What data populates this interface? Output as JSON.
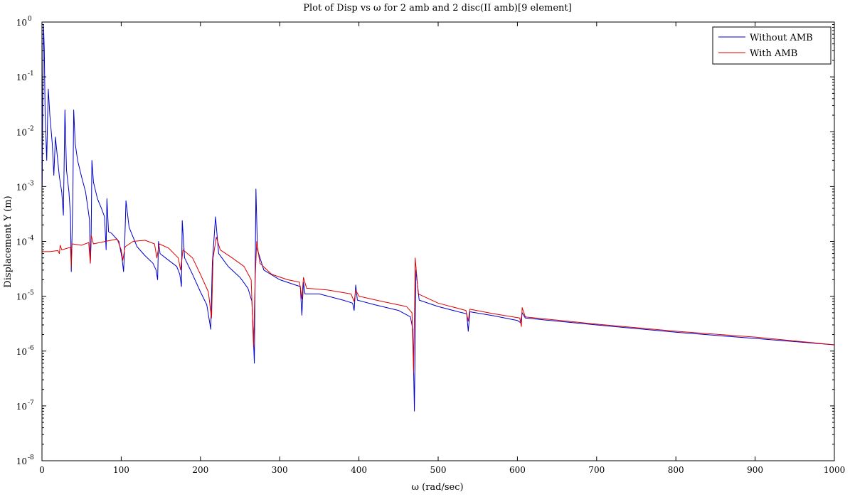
{
  "chart_data": {
    "type": "line",
    "title": "Plot of Disp vs ω for 2 amb and 2 disc(II amb)[9 element]",
    "xlabel": "ω (rad/sec)",
    "ylabel": "Displacement Y (m)",
    "xlim": [
      0,
      1000
    ],
    "ylim": [
      1e-08,
      1
    ],
    "yscale": "log",
    "grid": false,
    "legend_position": "top-right",
    "x_ticks": [
      0,
      100,
      200,
      300,
      400,
      500,
      600,
      700,
      800,
      900,
      1000
    ],
    "x_tick_labels": [
      "0",
      "100",
      "200",
      "300",
      "400",
      "500",
      "600",
      "700",
      "800",
      "900",
      "1000"
    ],
    "y_tick_exponents": [
      0,
      -1,
      -2,
      -3,
      -4,
      -5,
      -6,
      -7,
      -8
    ],
    "y_tick_base": "10",
    "series": [
      {
        "name": "Without AMB",
        "color": "#0000cc",
        "points": [
          [
            0.3,
            0.001
          ],
          [
            1,
            0.05
          ],
          [
            2,
            0.9
          ],
          [
            3,
            0.3
          ],
          [
            4,
            0.02
          ],
          [
            6,
            0.003
          ],
          [
            7,
            0.015
          ],
          [
            8,
            0.06
          ],
          [
            10,
            0.02
          ],
          [
            13,
            0.006
          ],
          [
            15,
            0.0016
          ],
          [
            17,
            0.008
          ],
          [
            19,
            0.004
          ],
          [
            22,
            0.0015
          ],
          [
            25,
            0.0008
          ],
          [
            27,
            0.0003
          ],
          [
            29,
            0.025
          ],
          [
            31,
            0.002
          ],
          [
            34,
            0.0008
          ],
          [
            36,
            0.0003
          ],
          [
            37,
            2.8e-05
          ],
          [
            39,
            0.0006
          ],
          [
            40,
            0.025
          ],
          [
            42,
            0.006
          ],
          [
            45,
            0.003
          ],
          [
            50,
            0.0015
          ],
          [
            55,
            0.0008
          ],
          [
            58,
            0.0004
          ],
          [
            60,
            0.00025
          ],
          [
            61,
            4e-05
          ],
          [
            62,
            0.0001
          ],
          [
            63,
            0.003
          ],
          [
            65,
            0.0012
          ],
          [
            70,
            0.0006
          ],
          [
            75,
            0.0004
          ],
          [
            79,
            0.00028
          ],
          [
            81,
            7e-05
          ],
          [
            82,
            0.0006
          ],
          [
            84,
            0.00015
          ],
          [
            88,
            0.00014
          ],
          [
            92,
            0.00012
          ],
          [
            97,
            0.0001
          ],
          [
            101,
            5e-05
          ],
          [
            103,
            2.8e-05
          ],
          [
            104,
            6e-05
          ],
          [
            106,
            0.00055
          ],
          [
            110,
            0.00018
          ],
          [
            120,
            8e-05
          ],
          [
            130,
            5.5e-05
          ],
          [
            140,
            4e-05
          ],
          [
            144,
            3e-05
          ],
          [
            146,
            2e-05
          ],
          [
            147,
            0.0001
          ],
          [
            149,
            6e-05
          ],
          [
            160,
            4.5e-05
          ],
          [
            170,
            3.5e-05
          ],
          [
            174,
            2.5e-05
          ],
          [
            176,
            1.5e-05
          ],
          [
            177,
            0.00024
          ],
          [
            180,
            5e-05
          ],
          [
            190,
            2.5e-05
          ],
          [
            200,
            1.2e-05
          ],
          [
            208,
            7e-06
          ],
          [
            213,
            2.5e-06
          ],
          [
            215,
            4e-05
          ],
          [
            219,
            0.00028
          ],
          [
            223,
            6e-05
          ],
          [
            235,
            3.5e-05
          ],
          [
            250,
            2.2e-05
          ],
          [
            260,
            1.4e-05
          ],
          [
            265,
            8e-06
          ],
          [
            268,
            6e-07
          ],
          [
            270,
            0.0009
          ],
          [
            272,
            7e-05
          ],
          [
            280,
            3e-05
          ],
          [
            300,
            2e-05
          ],
          [
            320,
            1.6e-05
          ],
          [
            326,
            1.5e-05
          ],
          [
            328,
            4.5e-06
          ],
          [
            330,
            1.8e-05
          ],
          [
            332,
            1.1e-05
          ],
          [
            350,
            1.1e-05
          ],
          [
            380,
            8.5e-06
          ],
          [
            392,
            7.5e-06
          ],
          [
            394,
            5.5e-06
          ],
          [
            396,
            1.6e-05
          ],
          [
            398,
            8.5e-06
          ],
          [
            420,
            7e-06
          ],
          [
            450,
            5.5e-06
          ],
          [
            465,
            4.2e-06
          ],
          [
            468,
            2.5e-06
          ],
          [
            470,
            8e-08
          ],
          [
            472,
            3e-05
          ],
          [
            476,
            8.5e-06
          ],
          [
            500,
            6.5e-06
          ],
          [
            530,
            5e-06
          ],
          [
            536,
            4.8e-06
          ],
          [
            538,
            2.3e-06
          ],
          [
            540,
            5.2e-06
          ],
          [
            570,
            4.4e-06
          ],
          [
            600,
            3.6e-06
          ],
          [
            604,
            3.3e-06
          ],
          [
            606,
            5e-06
          ],
          [
            610,
            4e-06
          ],
          [
            700,
            3e-06
          ],
          [
            800,
            2.2e-06
          ],
          [
            900,
            1.7e-06
          ],
          [
            1000,
            1.3e-06
          ]
        ]
      },
      {
        "name": "With AMB",
        "color": "#dd0000",
        "points": [
          [
            0,
            6.5e-05
          ],
          [
            10,
            6.5e-05
          ],
          [
            20,
            6.8e-05
          ],
          [
            22,
            6e-05
          ],
          [
            23,
            8.5e-05
          ],
          [
            25,
            7e-05
          ],
          [
            36,
            7.8e-05
          ],
          [
            37,
            3.5e-05
          ],
          [
            38,
            9e-05
          ],
          [
            50,
            8.5e-05
          ],
          [
            59,
            9.5e-05
          ],
          [
            61,
            4e-05
          ],
          [
            62,
            0.00013
          ],
          [
            65,
            9e-05
          ],
          [
            80,
            0.0001
          ],
          [
            95,
            0.00011
          ],
          [
            100,
            7e-05
          ],
          [
            102,
            4.5e-05
          ],
          [
            105,
            8e-05
          ],
          [
            115,
            0.0001
          ],
          [
            130,
            0.000105
          ],
          [
            142,
            9e-05
          ],
          [
            145,
            5e-05
          ],
          [
            148,
            9e-05
          ],
          [
            160,
            7.5e-05
          ],
          [
            172,
            5e-05
          ],
          [
            175,
            3e-05
          ],
          [
            178,
            7e-05
          ],
          [
            190,
            5e-05
          ],
          [
            200,
            2.5e-05
          ],
          [
            210,
            1.2e-05
          ],
          [
            214,
            4e-06
          ],
          [
            216,
            5e-05
          ],
          [
            220,
            0.00012
          ],
          [
            225,
            7e-05
          ],
          [
            240,
            5e-05
          ],
          [
            255,
            3.5e-05
          ],
          [
            264,
            2e-05
          ],
          [
            267,
            1.2e-06
          ],
          [
            269,
            2e-05
          ],
          [
            271,
            0.0001
          ],
          [
            275,
            4e-05
          ],
          [
            290,
            2.5e-05
          ],
          [
            310,
            2e-05
          ],
          [
            325,
            1.8e-05
          ],
          [
            328,
            9e-06
          ],
          [
            330,
            2.2e-05
          ],
          [
            334,
            1.4e-05
          ],
          [
            360,
            1.3e-05
          ],
          [
            390,
            1.1e-05
          ],
          [
            394,
            8e-06
          ],
          [
            396,
            1.3e-05
          ],
          [
            400,
            1e-05
          ],
          [
            430,
            8e-06
          ],
          [
            460,
            6.5e-06
          ],
          [
            467,
            5e-06
          ],
          [
            469,
            4e-07
          ],
          [
            471,
            5e-05
          ],
          [
            475,
            1.1e-05
          ],
          [
            500,
            7.5e-06
          ],
          [
            535,
            5.5e-06
          ],
          [
            538,
            3.5e-06
          ],
          [
            540,
            5.8e-06
          ],
          [
            570,
            4.8e-06
          ],
          [
            603,
            4e-06
          ],
          [
            605,
            2.8e-06
          ],
          [
            606,
            6.2e-06
          ],
          [
            610,
            4.2e-06
          ],
          [
            700,
            3.1e-06
          ],
          [
            800,
            2.3e-06
          ],
          [
            900,
            1.8e-06
          ],
          [
            1000,
            1.3e-06
          ]
        ]
      }
    ]
  }
}
